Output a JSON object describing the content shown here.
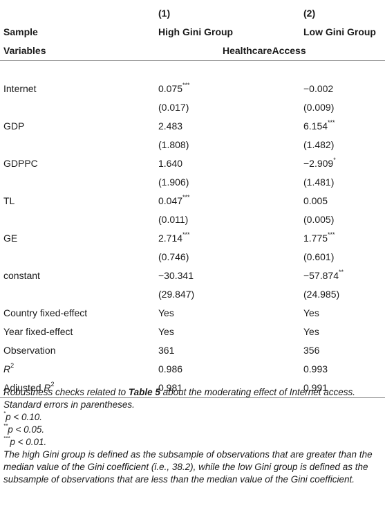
{
  "header": {
    "col_numbers": [
      "(1)",
      "(2)"
    ],
    "sample_label": "Sample",
    "groups": [
      "High Gini Group",
      "Low Gini Group"
    ],
    "variables_label": "Variables",
    "dependent_variable": "HealthcareAccess"
  },
  "rows": [
    {
      "label": "Internet",
      "c1": "0.075",
      "c1_stars": "***",
      "c2": "−0.002",
      "c2_stars": ""
    },
    {
      "label": "",
      "c1": "(0.017)",
      "c1_stars": "",
      "c2": "(0.009)",
      "c2_stars": ""
    },
    {
      "label": "GDP",
      "c1": "2.483",
      "c1_stars": "",
      "c2": "6.154",
      "c2_stars": "***"
    },
    {
      "label": "",
      "c1": "(1.808)",
      "c1_stars": "",
      "c2": "(1.482)",
      "c2_stars": ""
    },
    {
      "label": "GDPPC",
      "c1": "1.640",
      "c1_stars": "",
      "c2": "−2.909",
      "c2_stars": "*"
    },
    {
      "label": "",
      "c1": "(1.906)",
      "c1_stars": "",
      "c2": "(1.481)",
      "c2_stars": ""
    },
    {
      "label": "TL",
      "c1": "0.047",
      "c1_stars": "***",
      "c2": "0.005",
      "c2_stars": ""
    },
    {
      "label": "",
      "c1": "(0.011)",
      "c1_stars": "",
      "c2": "(0.005)",
      "c2_stars": ""
    },
    {
      "label": "GE",
      "c1": "2.714",
      "c1_stars": "***",
      "c2": "1.775",
      "c2_stars": "***"
    },
    {
      "label": "",
      "c1": "(0.746)",
      "c1_stars": "",
      "c2": "(0.601)",
      "c2_stars": ""
    },
    {
      "label": "constant",
      "c1": "−30.341",
      "c1_stars": "",
      "c2": "−57.874",
      "c2_stars": "**"
    },
    {
      "label": "",
      "c1": "(29.847)",
      "c1_stars": "",
      "c2": "(24.985)",
      "c2_stars": ""
    },
    {
      "label": "Country fixed-effect",
      "c1": "Yes",
      "c1_stars": "",
      "c2": "Yes",
      "c2_stars": ""
    },
    {
      "label": "Year fixed-effect",
      "c1": "Yes",
      "c1_stars": "",
      "c2": "Yes",
      "c2_stars": ""
    },
    {
      "label": "Observation",
      "c1": "361",
      "c1_stars": "",
      "c2": "356",
      "c2_stars": ""
    }
  ],
  "r2_row": {
    "label_base": "R",
    "label_sup": "2",
    "c1": "0.986",
    "c2": "0.993"
  },
  "adj_r2_row": {
    "label_base": "Adjusted R",
    "label_sup": "2",
    "c1": "0.981",
    "c2": "0.991"
  },
  "notes": {
    "line1_pre": "Robustness checks related to ",
    "line1_bold": "Table 5",
    "line1_post": " about the moderating effect of Internet access.",
    "line2": "Standard errors in parentheses.",
    "sig1_stars": "*",
    "sig1_text": "p < 0.10.",
    "sig2_stars": "**",
    "sig2_text": "p < 0.05.",
    "sig3_stars": "***",
    "sig3_text": "p < 0.01.",
    "definition_lines": [
      "The high Gini group is defined as the subsample of observations that are greater than the",
      "median value of the Gini coefficient (i.e., 38.2), while the low Gini group is defined as the",
      "subsample of observations that are less than the median value of the Gini coefficient."
    ]
  }
}
